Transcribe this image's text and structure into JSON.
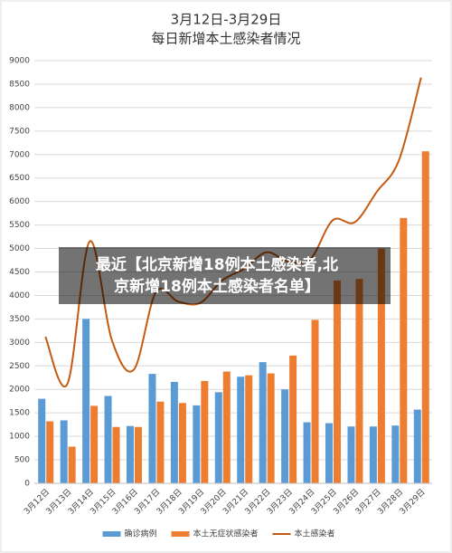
{
  "chart_data": {
    "type": "bar-line",
    "title": "3月12日-3月29日",
    "subtitle": "每日新增本土感染者情况",
    "categories": [
      "3月12日",
      "3月13日",
      "3月14日",
      "3月15日",
      "3月16日",
      "3月17日",
      "3月18日",
      "3月19日",
      "3月20日",
      "3月21日",
      "3月22日",
      "3月23日",
      "3月24日",
      "3月25日",
      "3月26日",
      "3月27日",
      "3月28日",
      "3月29日"
    ],
    "series": [
      {
        "name": "确诊病例",
        "type": "bar",
        "color": "#5b9bd5",
        "values": [
          1800,
          1340,
          3500,
          1860,
          1220,
          2330,
          2160,
          1660,
          1940,
          2270,
          2580,
          2000,
          1300,
          1280,
          1210,
          1210,
          1230,
          1570
        ]
      },
      {
        "name": "本土无症状感染者",
        "type": "bar",
        "color": "#ed7d31",
        "values": [
          1320,
          780,
          1650,
          1200,
          1200,
          1740,
          1710,
          2180,
          2380,
          2300,
          2340,
          2720,
          3480,
          4320,
          4350,
          5000,
          5650,
          7070
        ]
      },
      {
        "name": "本土感染者",
        "type": "line",
        "color": "#c55a11",
        "values": [
          3120,
          2120,
          5150,
          3060,
          2420,
          4070,
          3870,
          3840,
          4320,
          4570,
          4920,
          4720,
          4780,
          5600,
          5560,
          6210,
          6880,
          8640
        ]
      }
    ],
    "ylim": [
      0,
      9000
    ],
    "yticks": [
      0,
      500,
      1000,
      1500,
      2000,
      2500,
      3000,
      3500,
      4000,
      4500,
      5000,
      5500,
      6000,
      6500,
      7000,
      7500,
      8000,
      8500,
      9000
    ],
    "grid": true,
    "legend": "bottom"
  },
  "overlay": {
    "lines": [
      "最近【北京新增18例本土感染者,北",
      "京新增18例本土感染者名单】"
    ]
  }
}
